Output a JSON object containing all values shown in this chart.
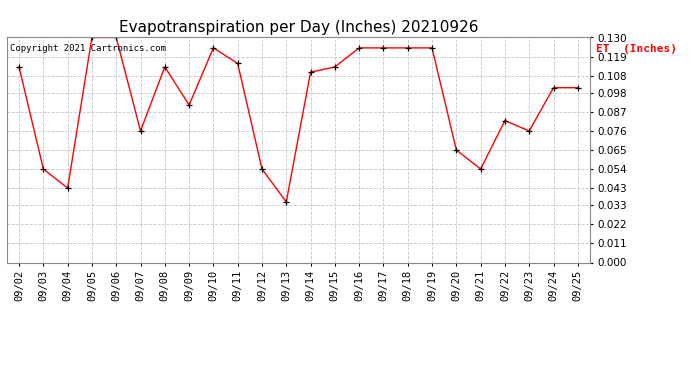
{
  "title": "Evapotranspiration per Day (Inches) 20210926",
  "copyright": "Copyright 2021 Cartronics.com",
  "legend_label": "ET  (Inches)",
  "dates": [
    "09/02",
    "09/03",
    "09/04",
    "09/05",
    "09/06",
    "09/07",
    "09/08",
    "09/09",
    "09/10",
    "09/11",
    "09/12",
    "09/13",
    "09/14",
    "09/15",
    "09/16",
    "09/17",
    "09/18",
    "09/19",
    "09/20",
    "09/21",
    "09/22",
    "09/23",
    "09/24",
    "09/25"
  ],
  "values": [
    0.113,
    0.054,
    0.043,
    0.13,
    0.13,
    0.076,
    0.113,
    0.091,
    0.124,
    0.115,
    0.054,
    0.035,
    0.11,
    0.113,
    0.124,
    0.124,
    0.124,
    0.124,
    0.065,
    0.054,
    0.082,
    0.076,
    0.101,
    0.101
  ],
  "ylim": [
    0.0,
    0.13
  ],
  "yticks": [
    0.0,
    0.011,
    0.022,
    0.033,
    0.043,
    0.054,
    0.065,
    0.076,
    0.087,
    0.098,
    0.108,
    0.119,
    0.13
  ],
  "line_color": "red",
  "marker": "+",
  "marker_color": "black",
  "grid_color": "#c0c0c0",
  "bg_color": "white",
  "title_fontsize": 11,
  "tick_fontsize": 7.5,
  "legend_color": "red",
  "copyright_color": "black",
  "copyright_fontsize": 6.5
}
